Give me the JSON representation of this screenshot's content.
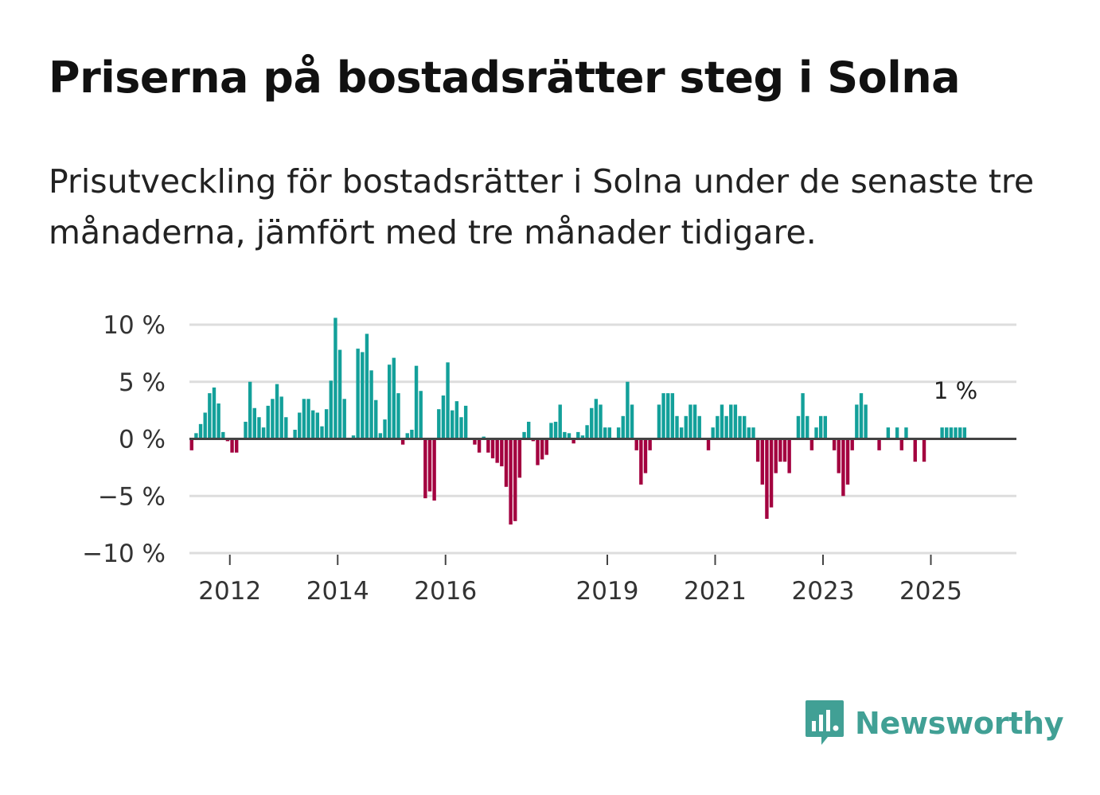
{
  "title": "Priserna på bostadsrätter steg i Solna",
  "subtitle": "Prisutveckling för bostadsrätter i Solna under de senaste tre månaderna, jämfört med tre månader tidigare.",
  "brand": {
    "name": "Newsworthy",
    "color": "#41a095"
  },
  "colors": {
    "positive": "#13a09a",
    "negative": "#a3003f",
    "grid": "#dddddd",
    "zero": "#444444"
  },
  "chart_data": {
    "type": "bar",
    "ylim": [
      -10,
      10
    ],
    "yticks": [
      10,
      5,
      0,
      -5,
      -10
    ],
    "ytick_labels": [
      "10 %",
      "5 %",
      "0 %",
      "−5 %",
      "−10 %"
    ],
    "x_start_year": 2011.25,
    "x_end_year": 2026.5,
    "xticks": [
      2012,
      2014,
      2016,
      2019,
      2021,
      2023,
      2025
    ],
    "xtick_labels": [
      "2012",
      "2014",
      "2016",
      "2019",
      "2021",
      "2023",
      "2025"
    ],
    "first_period": "2011-04",
    "frequency": "monthly",
    "values": [
      -1,
      0.5,
      1.3,
      2.3,
      4,
      4.5,
      3.1,
      0.6,
      -0.2,
      -1.2,
      -1.2,
      -0.1,
      1.5,
      5,
      2.7,
      1.9,
      1,
      2.9,
      3.5,
      4.8,
      3.7,
      1.9,
      0,
      0.8,
      2.3,
      3.5,
      3.5,
      2.5,
      2.3,
      1.1,
      2.6,
      5.1,
      10.6,
      7.8,
      3.5,
      0,
      0.3,
      7.9,
      7.6,
      9.2,
      6,
      3.4,
      0.5,
      1.7,
      6.5,
      7.1,
      4,
      -0.5,
      0.5,
      0.8,
      6.4,
      4.2,
      -5.2,
      -4.6,
      -5.4,
      2.6,
      3.8,
      6.7,
      2.5,
      3.3,
      1.9,
      2.9,
      0,
      -0.5,
      -1.2,
      0.2,
      -1.2,
      -1.7,
      -2.1,
      -2.4,
      -4.2,
      -7.5,
      -7.2,
      -3.4,
      0.6,
      1.5,
      -0.2,
      -2.3,
      -1.8,
      -1.4,
      1.4,
      1.5,
      3,
      0.6,
      0.5,
      -0.4,
      0.6,
      0.3,
      1.2,
      2.7,
      3.5,
      3,
      1,
      1,
      0,
      1,
      2,
      5,
      3,
      -1,
      -4,
      -3,
      -1,
      0,
      3,
      4,
      4,
      4,
      2,
      1,
      2,
      3,
      3,
      2,
      0,
      -1,
      1,
      2,
      3,
      2,
      3,
      3,
      2,
      2,
      1,
      1,
      -2,
      -4,
      -7,
      -6,
      -3,
      -2,
      -2,
      -3,
      0,
      2,
      4,
      2,
      -1,
      1,
      2,
      2,
      0,
      -1,
      -3,
      -5,
      -4,
      -1,
      3,
      4,
      3,
      0,
      0,
      -1,
      0,
      1,
      0,
      1,
      -1,
      1,
      0,
      -2,
      0,
      -2,
      0,
      0,
      0,
      1,
      1,
      1,
      1,
      1,
      1
    ],
    "end_label": "1 %"
  }
}
